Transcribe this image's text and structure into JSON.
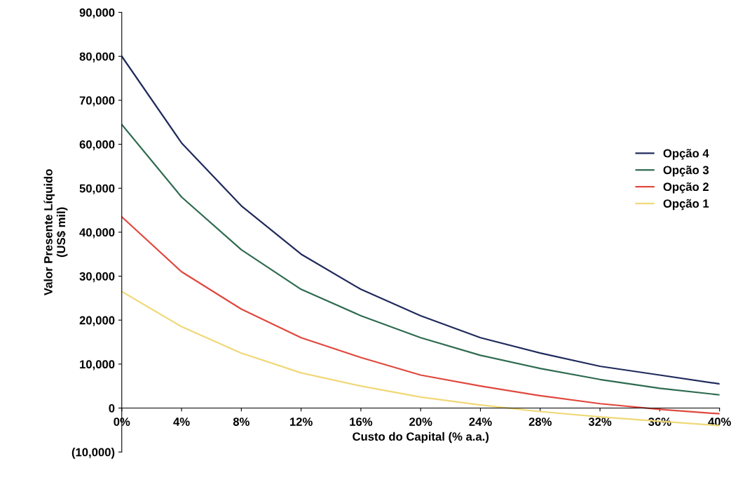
{
  "chart_data": {
    "type": "line",
    "xlabel": "Custo do Capital (% a.a.)",
    "ylabel": "Valor Presente Líquido\n(US$ mil)",
    "x": [
      0,
      4,
      8,
      12,
      16,
      20,
      24,
      28,
      32,
      36,
      40
    ],
    "series": [
      {
        "name": "Opção 4",
        "color": "#1f2a5c",
        "values": [
          80000,
          60300,
          46000,
          35000,
          27000,
          21000,
          16000,
          12500,
          9500,
          7500,
          5500
        ]
      },
      {
        "name": "Opção 3",
        "color": "#2e6b4f",
        "values": [
          64500,
          48000,
          36000,
          27000,
          21000,
          16000,
          12000,
          9000,
          6500,
          4500,
          3000
        ]
      },
      {
        "name": "Opção 2",
        "color": "#e0483e",
        "values": [
          43500,
          31000,
          22500,
          16000,
          11500,
          7500,
          5000,
          2800,
          1000,
          -300,
          -1300
        ]
      },
      {
        "name": "Opção 1",
        "color": "#f0d878",
        "values": [
          26500,
          18500,
          12500,
          8000,
          5000,
          2500,
          700,
          -800,
          -2000,
          -3000,
          -4000
        ]
      }
    ],
    "xlim": [
      0,
      40
    ],
    "xticks": [
      {
        "value": 0,
        "label": "0%"
      },
      {
        "value": 4,
        "label": "4%"
      },
      {
        "value": 8,
        "label": "8%"
      },
      {
        "value": 12,
        "label": "12%"
      },
      {
        "value": 16,
        "label": "16%"
      },
      {
        "value": 20,
        "label": "20%"
      },
      {
        "value": 24,
        "label": "24%"
      },
      {
        "value": 28,
        "label": "28%"
      },
      {
        "value": 32,
        "label": "32%"
      },
      {
        "value": 36,
        "label": "36%"
      },
      {
        "value": 40,
        "label": "40%"
      }
    ],
    "ylim": [
      -10000,
      90000
    ],
    "yticks": [
      {
        "value": -10000,
        "label": "(10,000)"
      },
      {
        "value": 0,
        "label": "0"
      },
      {
        "value": 10000,
        "label": "10,000"
      },
      {
        "value": 20000,
        "label": "20,000"
      },
      {
        "value": 30000,
        "label": "30,000"
      },
      {
        "value": 40000,
        "label": "40,000"
      },
      {
        "value": 50000,
        "label": "50,000"
      },
      {
        "value": 60000,
        "label": "60,000"
      },
      {
        "value": 70000,
        "label": "70,000"
      },
      {
        "value": 80000,
        "label": "80,000"
      },
      {
        "value": 90000,
        "label": "90,000"
      }
    ],
    "grid": false,
    "legend": "right"
  }
}
